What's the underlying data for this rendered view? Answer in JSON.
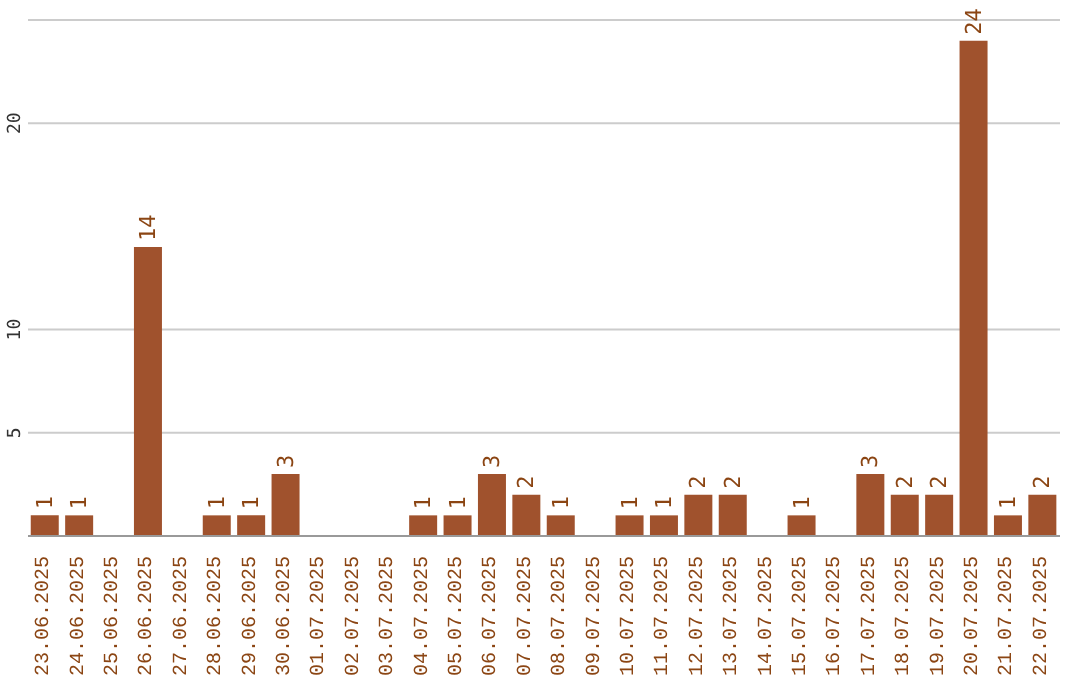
{
  "chart_data": {
    "type": "bar",
    "categories": [
      "23.06.2025",
      "24.06.2025",
      "25.06.2025",
      "26.06.2025",
      "27.06.2025",
      "28.06.2025",
      "29.06.2025",
      "30.06.2025",
      "01.07.2025",
      "02.07.2025",
      "03.07.2025",
      "04.07.2025",
      "05.07.2025",
      "06.07.2025",
      "07.07.2025",
      "08.07.2025",
      "09.07.2025",
      "10.07.2025",
      "11.07.2025",
      "12.07.2025",
      "13.07.2025",
      "14.07.2025",
      "15.07.2025",
      "16.07.2025",
      "17.07.2025",
      "18.07.2025",
      "19.07.2025",
      "20.07.2025",
      "21.07.2025",
      "22.07.2025"
    ],
    "values": [
      1,
      1,
      0,
      14,
      0,
      1,
      1,
      3,
      0,
      0,
      0,
      1,
      1,
      3,
      2,
      1,
      0,
      1,
      1,
      2,
      2,
      0,
      1,
      0,
      3,
      2,
      2,
      24,
      1,
      2
    ],
    "value_labels": [
      "1",
      "1",
      null,
      "14",
      null,
      "1",
      "1",
      "3",
      null,
      null,
      null,
      "1",
      "1",
      "3",
      "2",
      "1",
      null,
      "1",
      "1",
      "2",
      "2",
      null,
      "1",
      null,
      "3",
      "2",
      "2",
      "24",
      "1",
      "2"
    ],
    "color": "#a0522d",
    "ylim": [
      0,
      25
    ],
    "yticks": [
      5,
      10,
      20
    ],
    "grid": "y"
  }
}
